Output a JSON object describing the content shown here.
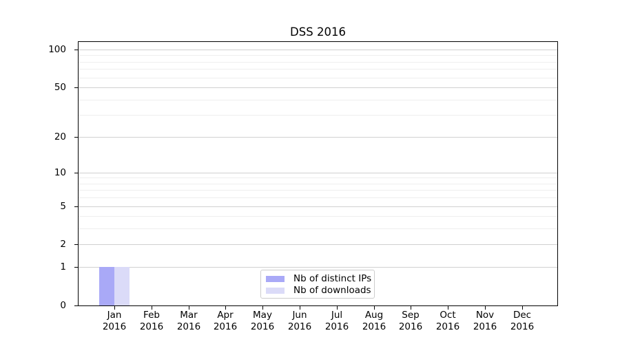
{
  "chart_data": {
    "type": "bar",
    "title": "DSS 2016",
    "categories": [
      {
        "month": "Jan",
        "year": "2016"
      },
      {
        "month": "Feb",
        "year": "2016"
      },
      {
        "month": "Mar",
        "year": "2016"
      },
      {
        "month": "Apr",
        "year": "2016"
      },
      {
        "month": "May",
        "year": "2016"
      },
      {
        "month": "Jun",
        "year": "2016"
      },
      {
        "month": "Jul",
        "year": "2016"
      },
      {
        "month": "Aug",
        "year": "2016"
      },
      {
        "month": "Sep",
        "year": "2016"
      },
      {
        "month": "Oct",
        "year": "2016"
      },
      {
        "month": "Nov",
        "year": "2016"
      },
      {
        "month": "Dec",
        "year": "2016"
      }
    ],
    "series": [
      {
        "name": "Nb of distinct IPs",
        "color": "#a9a9f7",
        "values": [
          1,
          0,
          0,
          0,
          0,
          0,
          0,
          0,
          0,
          0,
          0,
          0
        ]
      },
      {
        "name": "Nb of downloads",
        "color": "#dbdbf8",
        "values": [
          1,
          0,
          0,
          0,
          0,
          0,
          0,
          0,
          0,
          0,
          0,
          0
        ]
      }
    ],
    "xlabel": "",
    "ylabel": "",
    "yaxis": {
      "scale": "log1p",
      "major_ticks": [
        0,
        1,
        2,
        5,
        10,
        20,
        50,
        100
      ],
      "minor_ticks": [
        3,
        4,
        6,
        7,
        8,
        9,
        30,
        40,
        60,
        70,
        80,
        90
      ],
      "ylim": [
        0,
        116
      ]
    },
    "grid": {
      "major": true,
      "minor": true
    },
    "legend": {
      "position": "lower center"
    }
  },
  "colors": {
    "background": "#ffffff",
    "axis": "#000000",
    "text": "#000000",
    "major_grid": "#d0d0d0",
    "minor_grid": "#eeeeee",
    "legend_border": "#cccccc",
    "series1": "#a9a9f7",
    "series2": "#dbdbf8"
  }
}
